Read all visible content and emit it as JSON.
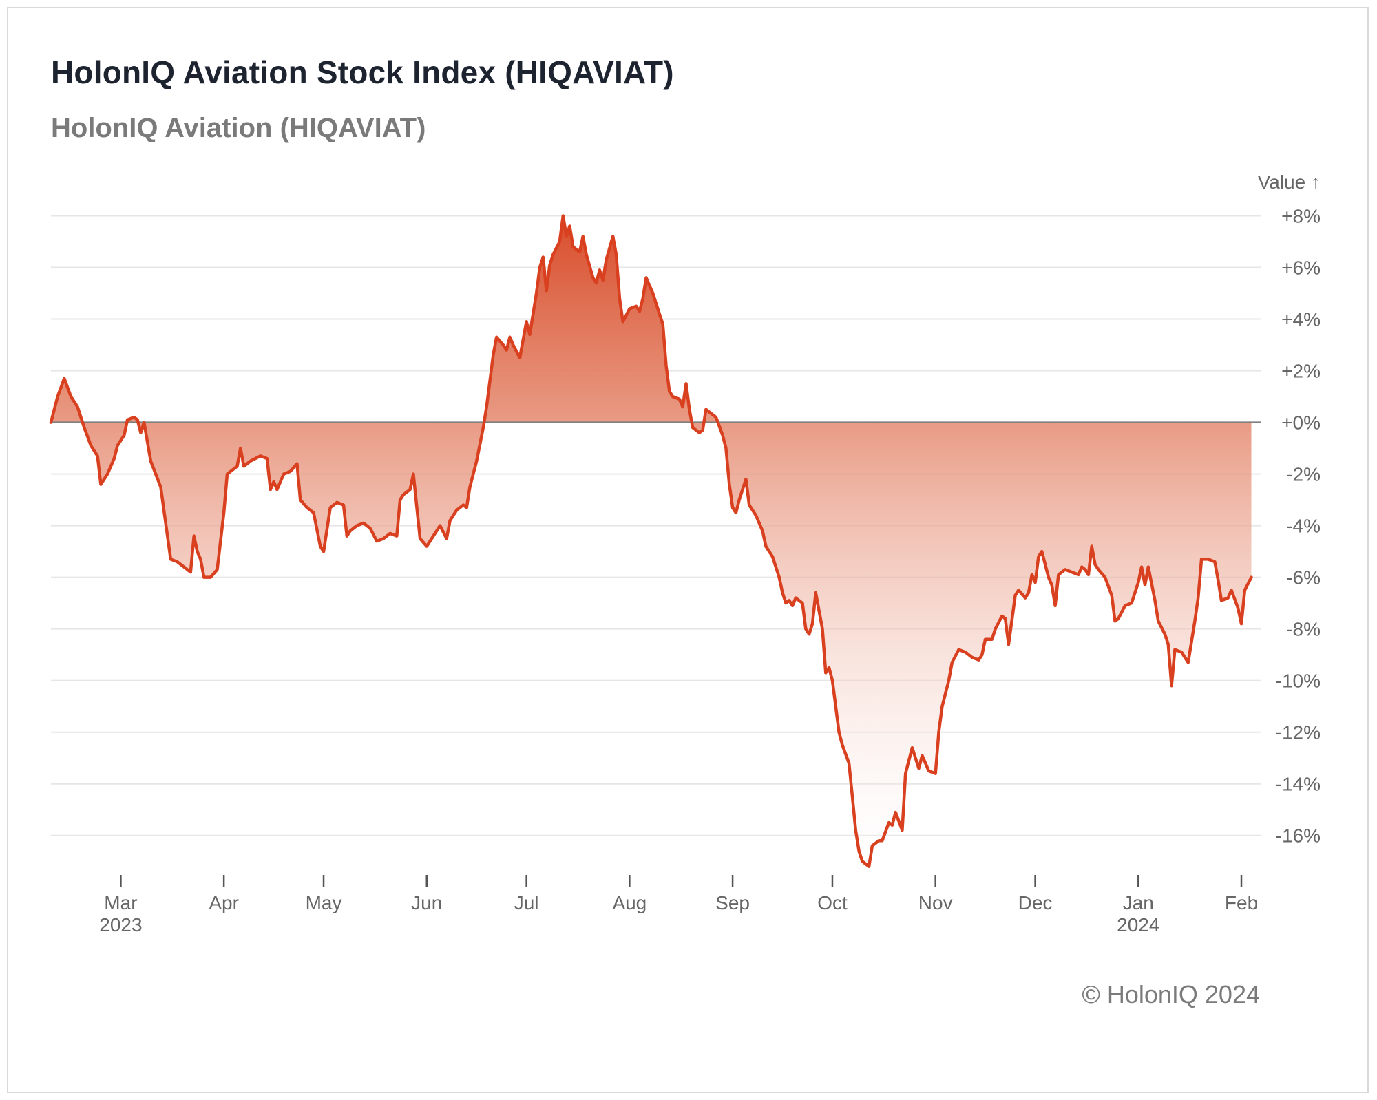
{
  "title": "HolonIQ Aviation Stock Index (HIQAVIAT)",
  "subtitle": "HolonIQ Aviation (HIQAVIAT)",
  "credit": "© HolonIQ 2024",
  "colors": {
    "line": "#d9401f",
    "fill_top": "#d84a28",
    "zero_line": "#7f7f7f",
    "grid": "#e6e6e6"
  },
  "chart_data": {
    "type": "area",
    "series_name": "HolonIQ Aviation (HIQAVIAT)",
    "y_axis_title": "Value ↑",
    "ylim": [
      -17.5,
      8.2
    ],
    "y_ticks": [
      {
        "value": 8,
        "label": "+8%"
      },
      {
        "value": 6,
        "label": "+6%"
      },
      {
        "value": 4,
        "label": "+4%"
      },
      {
        "value": 2,
        "label": "+2%"
      },
      {
        "value": 0,
        "label": "+0%"
      },
      {
        "value": -2,
        "label": "-2%"
      },
      {
        "value": -4,
        "label": "-4%"
      },
      {
        "value": -6,
        "label": "-6%"
      },
      {
        "value": -8,
        "label": "-8%"
      },
      {
        "value": -10,
        "label": "-10%"
      },
      {
        "value": -12,
        "label": "-12%"
      },
      {
        "value": -14,
        "label": "-14%"
      },
      {
        "value": -16,
        "label": "-16%"
      }
    ],
    "x_start": "2023-02-08",
    "x_end": "2024-02-07",
    "x_ticks": [
      {
        "date": "2023-03-01",
        "label": "Mar",
        "sublabel": "2023"
      },
      {
        "date": "2023-04-01",
        "label": "Apr",
        "sublabel": ""
      },
      {
        "date": "2023-05-01",
        "label": "May",
        "sublabel": ""
      },
      {
        "date": "2023-06-01",
        "label": "Jun",
        "sublabel": ""
      },
      {
        "date": "2023-07-01",
        "label": "Jul",
        "sublabel": ""
      },
      {
        "date": "2023-08-01",
        "label": "Aug",
        "sublabel": ""
      },
      {
        "date": "2023-09-01",
        "label": "Sep",
        "sublabel": ""
      },
      {
        "date": "2023-10-01",
        "label": "Oct",
        "sublabel": ""
      },
      {
        "date": "2023-11-01",
        "label": "Nov",
        "sublabel": ""
      },
      {
        "date": "2023-12-01",
        "label": "Dec",
        "sublabel": ""
      },
      {
        "date": "2024-01-01",
        "label": "Jan",
        "sublabel": "2024"
      },
      {
        "date": "2024-02-01",
        "label": "Feb",
        "sublabel": ""
      }
    ],
    "points": [
      [
        "2023-02-08",
        0.0
      ],
      [
        "2023-02-10",
        1.0
      ],
      [
        "2023-02-12",
        1.7
      ],
      [
        "2023-02-14",
        1.0
      ],
      [
        "2023-02-16",
        0.6
      ],
      [
        "2023-02-18",
        -0.2
      ],
      [
        "2023-02-20",
        -0.9
      ],
      [
        "2023-02-22",
        -1.3
      ],
      [
        "2023-02-23",
        -2.4
      ],
      [
        "2023-02-25",
        -2.0
      ],
      [
        "2023-02-27",
        -1.4
      ],
      [
        "2023-02-28",
        -0.9
      ],
      [
        "2023-03-02",
        -0.5
      ],
      [
        "2023-03-03",
        0.1
      ],
      [
        "2023-03-05",
        0.2
      ],
      [
        "2023-03-06",
        0.1
      ],
      [
        "2023-03-07",
        -0.4
      ],
      [
        "2023-03-08",
        0.0
      ],
      [
        "2023-03-10",
        -1.5
      ],
      [
        "2023-03-13",
        -2.5
      ],
      [
        "2023-03-16",
        -5.3
      ],
      [
        "2023-03-18",
        -5.4
      ],
      [
        "2023-03-20",
        -5.6
      ],
      [
        "2023-03-22",
        -5.8
      ],
      [
        "2023-03-23",
        -4.4
      ],
      [
        "2023-03-24",
        -5.0
      ],
      [
        "2023-03-25",
        -5.3
      ],
      [
        "2023-03-26",
        -6.0
      ],
      [
        "2023-03-28",
        -6.0
      ],
      [
        "2023-03-30",
        -5.7
      ],
      [
        "2023-04-01",
        -3.5
      ],
      [
        "2023-04-02",
        -2.0
      ],
      [
        "2023-04-04",
        -1.8
      ],
      [
        "2023-04-05",
        -1.7
      ],
      [
        "2023-04-06",
        -1.0
      ],
      [
        "2023-04-07",
        -1.7
      ],
      [
        "2023-04-09",
        -1.5
      ],
      [
        "2023-04-12",
        -1.3
      ],
      [
        "2023-04-14",
        -1.4
      ],
      [
        "2023-04-15",
        -2.6
      ],
      [
        "2023-04-16",
        -2.3
      ],
      [
        "2023-04-17",
        -2.6
      ],
      [
        "2023-04-19",
        -2.0
      ],
      [
        "2023-04-21",
        -1.9
      ],
      [
        "2023-04-23",
        -1.6
      ],
      [
        "2023-04-24",
        -3.0
      ],
      [
        "2023-04-26",
        -3.3
      ],
      [
        "2023-04-28",
        -3.5
      ],
      [
        "2023-04-30",
        -4.8
      ],
      [
        "2023-05-01",
        -5.0
      ],
      [
        "2023-05-03",
        -3.3
      ],
      [
        "2023-05-05",
        -3.1
      ],
      [
        "2023-05-07",
        -3.2
      ],
      [
        "2023-05-08",
        -4.4
      ],
      [
        "2023-05-09",
        -4.2
      ],
      [
        "2023-05-11",
        -4.0
      ],
      [
        "2023-05-13",
        -3.9
      ],
      [
        "2023-05-15",
        -4.1
      ],
      [
        "2023-05-17",
        -4.6
      ],
      [
        "2023-05-19",
        -4.5
      ],
      [
        "2023-05-21",
        -4.3
      ],
      [
        "2023-05-23",
        -4.4
      ],
      [
        "2023-05-24",
        -3.0
      ],
      [
        "2023-05-25",
        -2.8
      ],
      [
        "2023-05-27",
        -2.6
      ],
      [
        "2023-05-28",
        -2.0
      ],
      [
        "2023-05-30",
        -4.5
      ],
      [
        "2023-06-01",
        -4.8
      ],
      [
        "2023-06-03",
        -4.4
      ],
      [
        "2023-06-05",
        -4.0
      ],
      [
        "2023-06-07",
        -4.5
      ],
      [
        "2023-06-08",
        -3.8
      ],
      [
        "2023-06-10",
        -3.4
      ],
      [
        "2023-06-12",
        -3.2
      ],
      [
        "2023-06-13",
        -3.3
      ],
      [
        "2023-06-14",
        -2.5
      ],
      [
        "2023-06-16",
        -1.5
      ],
      [
        "2023-06-18",
        -0.2
      ],
      [
        "2023-06-19",
        0.6
      ],
      [
        "2023-06-20",
        1.6
      ],
      [
        "2023-06-21",
        2.6
      ],
      [
        "2023-06-22",
        3.3
      ],
      [
        "2023-06-24",
        3.0
      ],
      [
        "2023-06-25",
        2.8
      ],
      [
        "2023-06-26",
        3.3
      ],
      [
        "2023-06-27",
        3.0
      ],
      [
        "2023-06-29",
        2.5
      ],
      [
        "2023-07-01",
        3.9
      ],
      [
        "2023-07-02",
        3.4
      ],
      [
        "2023-07-04",
        5.0
      ],
      [
        "2023-07-05",
        6.0
      ],
      [
        "2023-07-06",
        6.4
      ],
      [
        "2023-07-07",
        5.1
      ],
      [
        "2023-07-08",
        6.1
      ],
      [
        "2023-07-09",
        6.5
      ],
      [
        "2023-07-11",
        7.0
      ],
      [
        "2023-07-12",
        8.0
      ],
      [
        "2023-07-13",
        7.2
      ],
      [
        "2023-07-14",
        7.6
      ],
      [
        "2023-07-15",
        6.8
      ],
      [
        "2023-07-17",
        6.6
      ],
      [
        "2023-07-18",
        7.2
      ],
      [
        "2023-07-19",
        6.5
      ],
      [
        "2023-07-21",
        5.6
      ],
      [
        "2023-07-22",
        5.4
      ],
      [
        "2023-07-23",
        5.9
      ],
      [
        "2023-07-24",
        5.5
      ],
      [
        "2023-07-25",
        6.3
      ],
      [
        "2023-07-27",
        7.2
      ],
      [
        "2023-07-28",
        6.5
      ],
      [
        "2023-07-29",
        4.8
      ],
      [
        "2023-07-30",
        3.9
      ],
      [
        "2023-08-01",
        4.4
      ],
      [
        "2023-08-03",
        4.5
      ],
      [
        "2023-08-04",
        4.3
      ],
      [
        "2023-08-05",
        4.8
      ],
      [
        "2023-08-06",
        5.6
      ],
      [
        "2023-08-08",
        5.0
      ],
      [
        "2023-08-10",
        4.2
      ],
      [
        "2023-08-11",
        3.8
      ],
      [
        "2023-08-12",
        2.2
      ],
      [
        "2023-08-13",
        1.2
      ],
      [
        "2023-08-14",
        1.0
      ],
      [
        "2023-08-16",
        0.9
      ],
      [
        "2023-08-17",
        0.6
      ],
      [
        "2023-08-18",
        1.5
      ],
      [
        "2023-08-19",
        0.5
      ],
      [
        "2023-08-20",
        -0.2
      ],
      [
        "2023-08-22",
        -0.4
      ],
      [
        "2023-08-23",
        -0.3
      ],
      [
        "2023-08-24",
        0.5
      ],
      [
        "2023-08-25",
        0.4
      ],
      [
        "2023-08-27",
        0.2
      ],
      [
        "2023-08-29",
        -0.5
      ],
      [
        "2023-08-30",
        -1.0
      ],
      [
        "2023-08-31",
        -2.4
      ],
      [
        "2023-09-01",
        -3.3
      ],
      [
        "2023-09-02",
        -3.5
      ],
      [
        "2023-09-03",
        -3.0
      ],
      [
        "2023-09-05",
        -2.2
      ],
      [
        "2023-09-06",
        -3.2
      ],
      [
        "2023-09-08",
        -3.6
      ],
      [
        "2023-09-10",
        -4.2
      ],
      [
        "2023-09-11",
        -4.8
      ],
      [
        "2023-09-12",
        -5.0
      ],
      [
        "2023-09-13",
        -5.2
      ],
      [
        "2023-09-15",
        -6.0
      ],
      [
        "2023-09-16",
        -6.6
      ],
      [
        "2023-09-17",
        -7.0
      ],
      [
        "2023-09-18",
        -6.9
      ],
      [
        "2023-09-19",
        -7.1
      ],
      [
        "2023-09-20",
        -6.8
      ],
      [
        "2023-09-22",
        -7.0
      ],
      [
        "2023-09-23",
        -8.0
      ],
      [
        "2023-09-24",
        -8.2
      ],
      [
        "2023-09-25",
        -7.8
      ],
      [
        "2023-09-26",
        -6.6
      ],
      [
        "2023-09-28",
        -8.0
      ],
      [
        "2023-09-29",
        -9.7
      ],
      [
        "2023-09-30",
        -9.5
      ],
      [
        "2023-10-01",
        -10.0
      ],
      [
        "2023-10-02",
        -11.0
      ],
      [
        "2023-10-03",
        -12.0
      ],
      [
        "2023-10-04",
        -12.5
      ],
      [
        "2023-10-06",
        -13.2
      ],
      [
        "2023-10-07",
        -14.5
      ],
      [
        "2023-10-08",
        -15.8
      ],
      [
        "2023-10-09",
        -16.6
      ],
      [
        "2023-10-10",
        -17.0
      ],
      [
        "2023-10-12",
        -17.2
      ],
      [
        "2023-10-13",
        -16.4
      ],
      [
        "2023-10-15",
        -16.2
      ],
      [
        "2023-10-16",
        -16.2
      ],
      [
        "2023-10-18",
        -15.5
      ],
      [
        "2023-10-19",
        -15.6
      ],
      [
        "2023-10-20",
        -15.1
      ],
      [
        "2023-10-22",
        -15.8
      ],
      [
        "2023-10-23",
        -13.6
      ],
      [
        "2023-10-25",
        -12.6
      ],
      [
        "2023-10-27",
        -13.4
      ],
      [
        "2023-10-28",
        -12.9
      ],
      [
        "2023-10-30",
        -13.5
      ],
      [
        "2023-11-01",
        -13.6
      ],
      [
        "2023-11-02",
        -12.0
      ],
      [
        "2023-11-03",
        -11.0
      ],
      [
        "2023-11-04",
        -10.5
      ],
      [
        "2023-11-05",
        -10.0
      ],
      [
        "2023-11-06",
        -9.3
      ],
      [
        "2023-11-08",
        -8.8
      ],
      [
        "2023-11-10",
        -8.9
      ],
      [
        "2023-11-12",
        -9.1
      ],
      [
        "2023-11-14",
        -9.2
      ],
      [
        "2023-11-15",
        -9.0
      ],
      [
        "2023-11-16",
        -8.4
      ],
      [
        "2023-11-18",
        -8.4
      ],
      [
        "2023-11-19",
        -8.0
      ],
      [
        "2023-11-21",
        -7.5
      ],
      [
        "2023-11-22",
        -7.6
      ],
      [
        "2023-11-23",
        -8.6
      ],
      [
        "2023-11-25",
        -6.7
      ],
      [
        "2023-11-26",
        -6.5
      ],
      [
        "2023-11-28",
        -6.8
      ],
      [
        "2023-11-29",
        -6.6
      ],
      [
        "2023-11-30",
        -5.9
      ],
      [
        "2023-12-01",
        -6.2
      ],
      [
        "2023-12-02",
        -5.2
      ],
      [
        "2023-12-03",
        -5.0
      ],
      [
        "2023-12-05",
        -6.0
      ],
      [
        "2023-12-06",
        -6.3
      ],
      [
        "2023-12-07",
        -7.1
      ],
      [
        "2023-12-08",
        -5.9
      ],
      [
        "2023-12-10",
        -5.7
      ],
      [
        "2023-12-12",
        -5.8
      ],
      [
        "2023-12-14",
        -5.9
      ],
      [
        "2023-12-15",
        -5.6
      ],
      [
        "2023-12-16",
        -5.7
      ],
      [
        "2023-12-17",
        -5.9
      ],
      [
        "2023-12-18",
        -4.8
      ],
      [
        "2023-12-19",
        -5.5
      ],
      [
        "2023-12-20",
        -5.7
      ],
      [
        "2023-12-22",
        -6.0
      ],
      [
        "2023-12-24",
        -6.7
      ],
      [
        "2023-12-25",
        -7.7
      ],
      [
        "2023-12-26",
        -7.6
      ],
      [
        "2023-12-28",
        -7.1
      ],
      [
        "2023-12-30",
        -7.0
      ],
      [
        "2024-01-01",
        -6.2
      ],
      [
        "2024-01-02",
        -5.6
      ],
      [
        "2024-01-03",
        -6.3
      ],
      [
        "2024-01-04",
        -5.6
      ],
      [
        "2024-01-06",
        -6.9
      ],
      [
        "2024-01-07",
        -7.7
      ],
      [
        "2024-01-09",
        -8.2
      ],
      [
        "2024-01-10",
        -8.6
      ],
      [
        "2024-01-11",
        -10.2
      ],
      [
        "2024-01-12",
        -8.8
      ],
      [
        "2024-01-14",
        -8.9
      ],
      [
        "2024-01-16",
        -9.3
      ],
      [
        "2024-01-18",
        -7.7
      ],
      [
        "2024-01-19",
        -6.8
      ],
      [
        "2024-01-20",
        -5.3
      ],
      [
        "2024-01-22",
        -5.3
      ],
      [
        "2024-01-24",
        -5.4
      ],
      [
        "2024-01-25",
        -6.1
      ],
      [
        "2024-01-26",
        -6.9
      ],
      [
        "2024-01-28",
        -6.8
      ],
      [
        "2024-01-29",
        -6.5
      ],
      [
        "2024-01-31",
        -7.2
      ],
      [
        "2024-02-01",
        -7.8
      ],
      [
        "2024-02-02",
        -6.5
      ],
      [
        "2024-02-04",
        -6.0
      ]
    ]
  }
}
